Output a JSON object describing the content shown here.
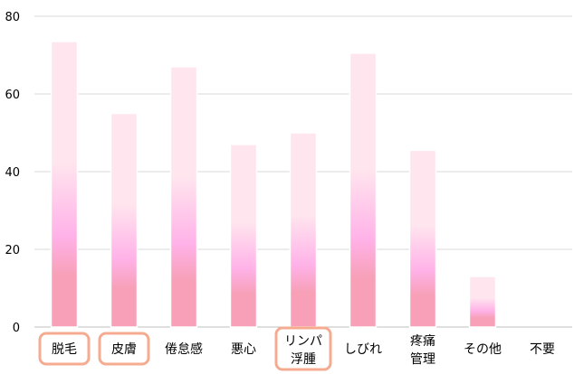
{
  "chart_data": {
    "type": "bar",
    "title": "",
    "xlabel": "",
    "ylabel": "",
    "ylim": [
      0,
      80
    ],
    "yticks": [
      0,
      20,
      40,
      60,
      80
    ],
    "grid": true,
    "legend": "none",
    "categories": [
      [
        "脱毛"
      ],
      [
        "皮膚"
      ],
      [
        "倦怠感"
      ],
      [
        "悪心"
      ],
      [
        "リンパ",
        "浮腫"
      ],
      [
        "しびれ"
      ],
      [
        "疼痛",
        "管理"
      ],
      [
        "その他"
      ],
      [
        "不要"
      ]
    ],
    "values": [
      73.5,
      55,
      67,
      47,
      50,
      70.5,
      45.5,
      13,
      0
    ],
    "highlighted_categories": [
      0,
      1,
      4
    ],
    "colors": {
      "bar_top": "#ffe6ee",
      "bar_mid": "#ffb2e8",
      "bar_bottom": "#f7a0b8",
      "highlight_border": "#f4ab90",
      "grid": "#d9d9d9",
      "axis": "#bfbfbf"
    }
  }
}
